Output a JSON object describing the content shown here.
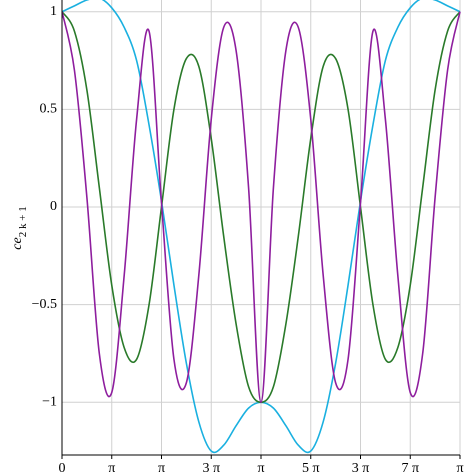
{
  "chart_data": {
    "type": "line",
    "ylabel": "ce",
    "ylabel_subscript": "2 k + 1",
    "x": [
      0,
      0.0982,
      0.1963,
      0.2945,
      0.3927,
      0.4909,
      0.589,
      0.6872,
      0.7854,
      0.8836,
      0.9817,
      1.0799,
      1.1781,
      1.2763,
      1.3744,
      1.4726,
      1.5708,
      1.669,
      1.7671,
      1.8653,
      1.9635,
      2.0617,
      2.1598,
      2.258,
      2.3562,
      2.4544,
      2.5525,
      2.6507,
      2.7489,
      2.8471,
      2.9452,
      3.0434,
      3.1416
    ],
    "series": [
      {
        "color": "#1ab0e0",
        "values": [
          1,
          1.03,
          1.06,
          1.07,
          1.02,
          0.92,
          0.75,
          0.42,
          0.03,
          -0.4,
          -0.8,
          -1.1,
          -1.25,
          -1.22,
          -1.12,
          -1.03,
          -1,
          -1.03,
          -1.12,
          -1.22,
          -1.25,
          -1.1,
          -0.8,
          -0.4,
          0.03,
          0.42,
          0.75,
          0.92,
          1.02,
          1.07,
          1.06,
          1.03,
          1
        ]
      },
      {
        "color": "#2a7a2a",
        "values": [
          1,
          0.9,
          0.6,
          0.1,
          -0.4,
          -0.72,
          -0.78,
          -0.5,
          0,
          0.5,
          0.76,
          0.72,
          0.35,
          -0.15,
          -0.6,
          -0.92,
          -1,
          -0.92,
          -0.6,
          -0.15,
          0.35,
          0.72,
          0.76,
          0.5,
          0,
          -0.5,
          -0.78,
          -0.72,
          -0.4,
          0.1,
          0.6,
          0.9,
          1
        ]
      },
      {
        "color": "#8e1e9e",
        "values": [
          1,
          0.7,
          0.05,
          -0.75,
          -0.95,
          -0.35,
          0.45,
          0.9,
          0.02,
          -0.78,
          -0.9,
          -0.35,
          0.45,
          0.92,
          0.8,
          0.1,
          -1,
          0.1,
          0.8,
          0.92,
          0.45,
          -0.35,
          -0.9,
          -0.78,
          0.02,
          0.9,
          0.45,
          -0.35,
          -0.95,
          -0.75,
          0.05,
          0.7,
          1
        ]
      }
    ],
    "xlim": [
      0,
      3.1416
    ],
    "xticks": [
      {
        "value": 0,
        "label": "0"
      },
      {
        "value": 0.3927,
        "label": "π"
      },
      {
        "value": 0.7854,
        "label": "π"
      },
      {
        "value": 1.1781,
        "label": "3 π"
      },
      {
        "value": 1.5708,
        "label": "π"
      },
      {
        "value": 1.9635,
        "label": "5 π"
      },
      {
        "value": 2.3562,
        "label": "3 π"
      },
      {
        "value": 2.7489,
        "label": "7 π"
      },
      {
        "value": 3.1416,
        "label": "π"
      }
    ],
    "ylim": [
      -1.27,
      1.06
    ],
    "yticks": [
      {
        "value": -1,
        "label": "−1"
      },
      {
        "value": -0.5,
        "label": "−0.5"
      },
      0,
      0.5,
      1
    ],
    "grid": true
  }
}
